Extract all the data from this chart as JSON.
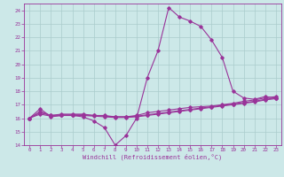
{
  "xlabel": "Windchill (Refroidissement éolien,°C)",
  "x_hours": [
    0,
    1,
    2,
    3,
    4,
    5,
    6,
    7,
    8,
    9,
    10,
    11,
    12,
    13,
    14,
    15,
    16,
    17,
    18,
    19,
    20,
    21,
    22,
    23
  ],
  "line1": [
    16.0,
    16.7,
    16.1,
    16.2,
    16.2,
    16.1,
    15.8,
    15.3,
    14.0,
    14.7,
    16.0,
    19.0,
    21.0,
    24.2,
    23.5,
    23.2,
    22.8,
    21.8,
    20.5,
    18.0,
    17.5,
    17.4,
    17.6,
    17.5
  ],
  "line2": [
    16.0,
    16.5,
    16.2,
    16.3,
    16.3,
    16.3,
    16.2,
    16.2,
    16.1,
    16.1,
    16.2,
    16.4,
    16.5,
    16.6,
    16.7,
    16.8,
    16.85,
    16.9,
    17.0,
    17.1,
    17.25,
    17.35,
    17.5,
    17.6
  ],
  "line3": [
    16.0,
    16.4,
    16.2,
    16.25,
    16.25,
    16.25,
    16.2,
    16.15,
    16.1,
    16.1,
    16.15,
    16.25,
    16.35,
    16.45,
    16.55,
    16.65,
    16.75,
    16.85,
    16.95,
    17.05,
    17.15,
    17.25,
    17.4,
    17.5
  ],
  "line4": [
    16.0,
    16.3,
    16.15,
    16.2,
    16.2,
    16.2,
    16.15,
    16.1,
    16.05,
    16.05,
    16.1,
    16.2,
    16.3,
    16.4,
    16.5,
    16.6,
    16.7,
    16.8,
    16.9,
    17.0,
    17.1,
    17.2,
    17.35,
    17.45
  ],
  "line_color": "#993399",
  "bg_color": "#cce8e8",
  "grid_color": "#aacccc",
  "ylim": [
    14,
    24.5
  ],
  "yticks": [
    14,
    15,
    16,
    17,
    18,
    19,
    20,
    21,
    22,
    23,
    24
  ],
  "xticks": [
    0,
    1,
    2,
    3,
    4,
    5,
    6,
    7,
    8,
    9,
    10,
    11,
    12,
    13,
    14,
    15,
    16,
    17,
    18,
    19,
    20,
    21,
    22,
    23
  ]
}
